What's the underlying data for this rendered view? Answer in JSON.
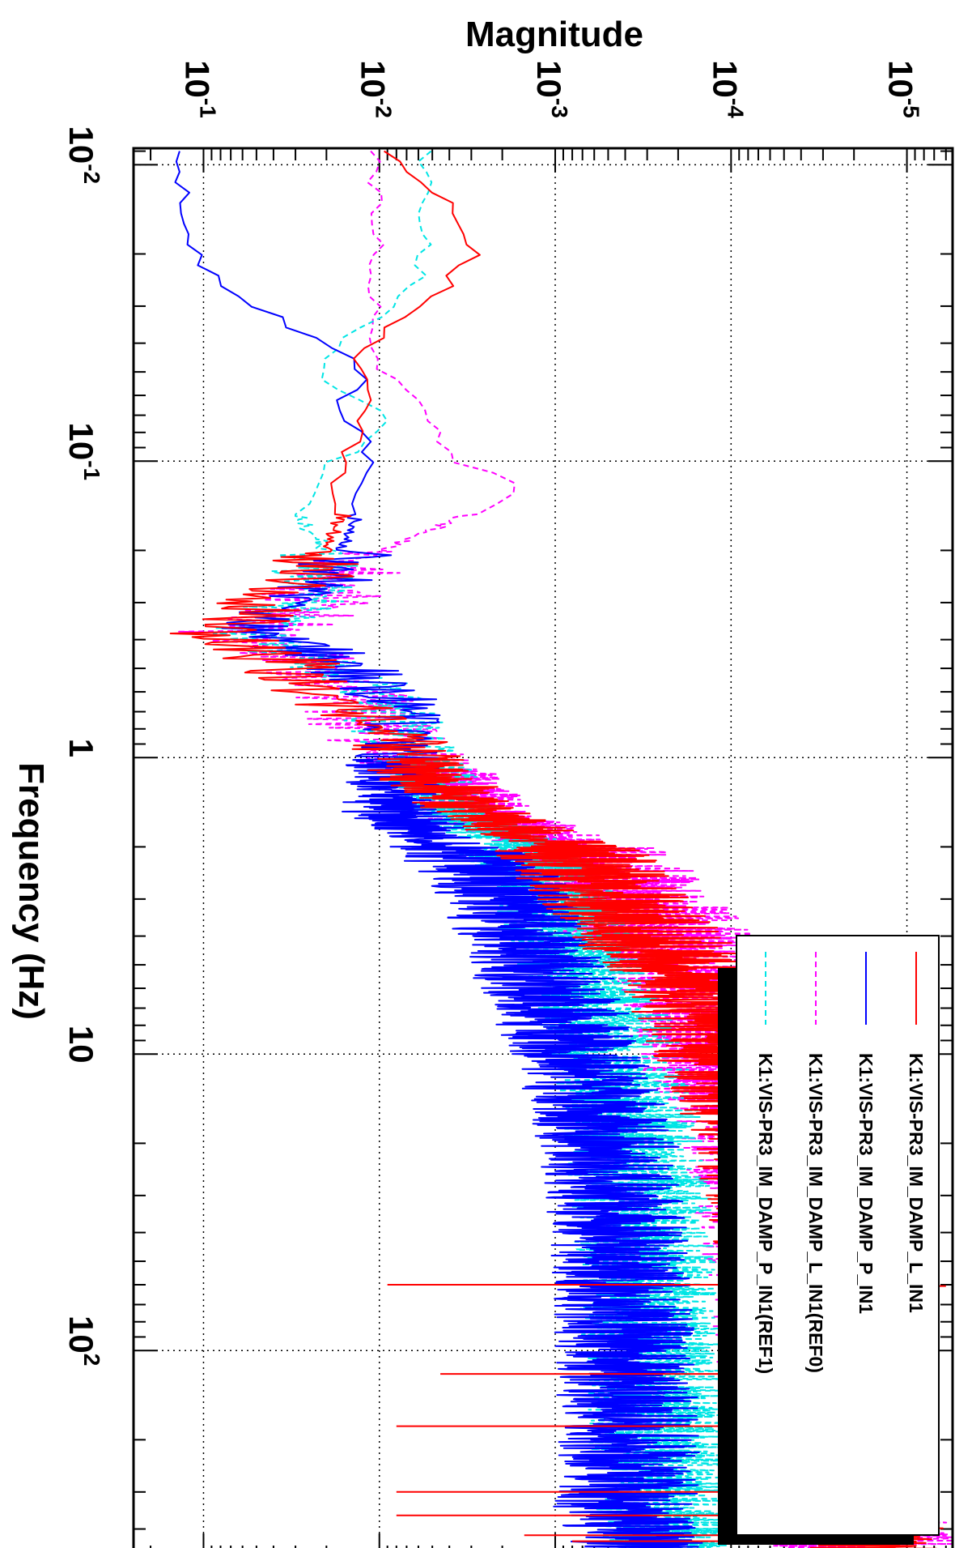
{
  "chart_data": {
    "type": "line",
    "title": "",
    "xlabel": "Frequency (Hz)",
    "ylabel": "Magnitude",
    "xscale": "log",
    "yscale": "log",
    "xlim": [
      0.0088,
      500
    ],
    "ylim": [
      5.5e-06,
      0.25
    ],
    "orientation": "rotated 90 degrees clockwise (frequency axis runs top to bottom, magnitude axis runs right to left)",
    "grid": true,
    "x_ticks": [
      {
        "value": 0.01,
        "mant": "10",
        "exp": "-2"
      },
      {
        "value": 0.1,
        "mant": "10",
        "exp": "-1"
      },
      {
        "value": 1,
        "mant": "1",
        "exp": ""
      },
      {
        "value": 10,
        "mant": "10",
        "exp": ""
      },
      {
        "value": 100,
        "mant": "10",
        "exp": "2"
      }
    ],
    "y_ticks": [
      {
        "value": 1e-05,
        "mant": "10",
        "exp": "-5"
      },
      {
        "value": 0.0001,
        "mant": "10",
        "exp": "-4"
      },
      {
        "value": 0.001,
        "mant": "10",
        "exp": "-3"
      },
      {
        "value": 0.01,
        "mant": "10",
        "exp": "-2"
      },
      {
        "value": 0.1,
        "mant": "10",
        "exp": "-1"
      }
    ],
    "legend_position": "right-bottom",
    "series": [
      {
        "name": "K1:VIS-PR3_IM_DAMP_L_IN1",
        "color": "#ff0000",
        "dash": "solid",
        "noise": 0.45,
        "x": [
          0.009,
          0.0125,
          0.0195,
          0.027,
          0.033,
          0.045,
          0.06,
          0.07,
          0.085,
          0.1,
          0.125,
          0.15,
          0.2,
          0.25,
          0.3,
          0.35,
          0.38,
          0.45,
          0.6,
          0.8,
          1,
          1.5,
          2,
          3,
          4,
          6,
          10,
          20,
          50,
          100,
          200,
          300,
          350,
          400,
          500
        ],
        "y": [
          0.0105,
          0.0045,
          0.00285,
          0.0045,
          0.0075,
          0.0125,
          0.0115,
          0.0125,
          0.014,
          0.016,
          0.02,
          0.016,
          0.02,
          0.025,
          0.045,
          0.06,
          0.09,
          0.04,
          0.02,
          0.01,
          0.007,
          0.003,
          0.0009,
          0.00045,
          0.0003,
          0.00015,
          0.0001,
          6e-05,
          4.2e-05,
          3.8e-05,
          3e-05,
          2.5e-05,
          2e-05,
          1.7e-05,
          1.6e-05
        ]
      },
      {
        "name": "K1:VIS-PR3_IM_DAMP_P_IN1",
        "color": "#0000ff",
        "dash": "solid",
        "noise": 0.4,
        "x": [
          0.009,
          0.015,
          0.022,
          0.03,
          0.037,
          0.045,
          0.055,
          0.07,
          0.08,
          0.1,
          0.13,
          0.16,
          0.2,
          0.25,
          0.3,
          0.35,
          0.38,
          0.45,
          0.6,
          0.8,
          1,
          1.5,
          2,
          3,
          4,
          6,
          10,
          20,
          50,
          100,
          200,
          300,
          350,
          400,
          500
        ],
        "y": [
          0.14,
          0.13,
          0.1,
          0.05,
          0.028,
          0.015,
          0.012,
          0.02,
          0.012,
          0.011,
          0.013,
          0.014,
          0.016,
          0.018,
          0.03,
          0.04,
          0.06,
          0.02,
          0.009,
          0.008,
          0.008,
          0.009,
          0.0035,
          0.0018,
          0.0015,
          0.0011,
          0.00075,
          0.0005,
          0.00042,
          0.0004,
          0.00038,
          0.00038,
          0.00042,
          0.00036,
          0.00033
        ]
      },
      {
        "name": "K1:VIS-PR3_IM_DAMP_L_IN1(REF0)",
        "color": "#ff00ff",
        "dash": "dashed",
        "noise": 0.55,
        "x": [
          0.009,
          0.012,
          0.015,
          0.02,
          0.025,
          0.03,
          0.04,
          0.05,
          0.06,
          0.07,
          0.08,
          0.1,
          0.12,
          0.15,
          0.2,
          0.25,
          0.3,
          0.35,
          0.38,
          0.45,
          0.6,
          0.8,
          1,
          1.5,
          2,
          3,
          4,
          6,
          10,
          20,
          50,
          100,
          200,
          300,
          350,
          400,
          500
        ],
        "y": [
          0.0105,
          0.0105,
          0.0105,
          0.0105,
          0.0105,
          0.0105,
          0.0105,
          0.0105,
          0.006,
          0.005,
          0.005,
          0.004,
          0.0015,
          0.003,
          0.01,
          0.015,
          0.025,
          0.04,
          0.06,
          0.03,
          0.015,
          0.01,
          0.006,
          0.003,
          0.0008,
          0.0004,
          0.00025,
          0.00014,
          0.0001,
          5.5e-05,
          4e-05,
          3.5e-05,
          3e-05,
          2.5e-05,
          2e-05,
          1.8e-05,
          1.6e-05
        ]
      },
      {
        "name": "K1:VIS-PR3_IM_DAMP_P_IN1(REF1)",
        "color": "#00e5e5",
        "dash": "dashed",
        "noise": 0.4,
        "x": [
          0.009,
          0.02,
          0.025,
          0.03,
          0.04,
          0.05,
          0.06,
          0.07,
          0.09,
          0.1,
          0.12,
          0.15,
          0.2,
          0.25,
          0.3,
          0.35,
          0.38,
          0.45,
          0.6,
          0.8,
          1,
          1.5,
          2,
          3,
          4,
          6,
          10,
          20,
          50,
          100,
          200,
          300,
          350,
          400,
          500
        ],
        "y": [
          0.0055,
          0.0055,
          0.006,
          0.008,
          0.018,
          0.022,
          0.015,
          0.009,
          0.012,
          0.02,
          0.02,
          0.03,
          0.02,
          0.025,
          0.03,
          0.045,
          0.07,
          0.025,
          0.01,
          0.008,
          0.006,
          0.004,
          0.0015,
          0.001,
          0.0008,
          0.0006,
          0.00045,
          0.00035,
          0.0003,
          0.00028,
          0.00026,
          0.00025,
          0.00024,
          0.00023,
          0.00022
        ]
      }
    ],
    "spikes": {
      "color": "#ff0000",
      "items": [
        {
          "x": 60,
          "y": 0.009
        },
        {
          "x": 60.6,
          "y": 6e-06
        },
        {
          "x": 120,
          "y": 0.0045
        },
        {
          "x": 180,
          "y": 0.008
        },
        {
          "x": 300,
          "y": 0.008
        },
        {
          "x": 360,
          "y": 0.008
        },
        {
          "x": 420,
          "y": 0.0015
        },
        {
          "x": 440,
          "y": 0.0008
        }
      ]
    }
  }
}
